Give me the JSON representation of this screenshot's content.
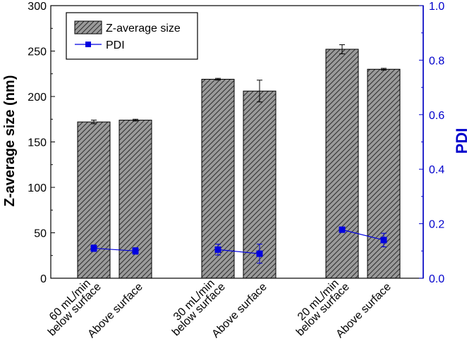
{
  "chart_data": {
    "type": "bar",
    "xlabel": "",
    "ylabel": "Z-average size (nm)",
    "y2label": "PDI",
    "ylim": [
      0,
      300
    ],
    "y2lim": [
      0,
      1.0
    ],
    "yticks": [
      "0",
      "50",
      "100",
      "150",
      "200",
      "250",
      "300"
    ],
    "y2ticks": [
      "0.0",
      "0.2",
      "0.4",
      "0.6",
      "0.8",
      "1.0"
    ],
    "groups": [
      {
        "line1": "60 mL/min",
        "line2": "below surface",
        "line3": "Above surface"
      },
      {
        "line1": "30 mL/min",
        "line2": "below surface",
        "line3": "Above surface"
      },
      {
        "line1": "20 mL/min",
        "line2": "below surface",
        "line3": "Above surface"
      }
    ],
    "series": [
      {
        "name": "Z-average size",
        "axis": "left",
        "type": "bar",
        "values": [
          [
            172,
            174
          ],
          [
            219,
            206
          ],
          [
            252,
            230
          ]
        ],
        "errors": [
          [
            2,
            1
          ],
          [
            1,
            12
          ],
          [
            5,
            1
          ]
        ]
      },
      {
        "name": "PDI",
        "axis": "right",
        "type": "line",
        "values": [
          [
            0.11,
            0.1
          ],
          [
            0.105,
            0.09
          ],
          [
            0.178,
            0.14
          ]
        ],
        "errors": [
          [
            0.012,
            0.012
          ],
          [
            0.02,
            0.035
          ],
          [
            0.008,
            0.025
          ]
        ]
      }
    ],
    "legend_position": "top-left",
    "grid": false,
    "colors": {
      "bar_fill": "#808080",
      "hatch": "#333333",
      "pdi": "#0000e0",
      "right_axis": "#0000cc",
      "axis": "#000000"
    }
  }
}
